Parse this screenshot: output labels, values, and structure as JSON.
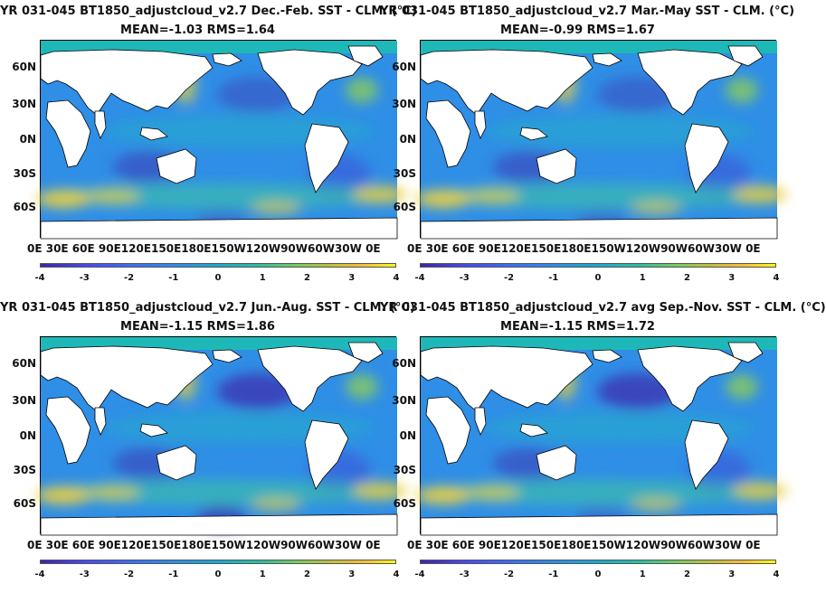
{
  "panels": [
    {
      "title1": "YR 031-045 BT1850_adjustcloud_v2.7  Dec.-Feb. SST - CLM. (°C)",
      "title2": "MEAN=-1.03   RMS=1.64"
    },
    {
      "title1": "YR 031-045 BT1850_adjustcloud_v2.7 Mar.-May SST - CLM. (°C)",
      "title2": "MEAN=-0.99   RMS=1.67"
    },
    {
      "title1": "YR 031-045 BT1850_adjustcloud_v2.7 Jun.-Aug. SST - CLM. (°C)",
      "title2": "MEAN=-1.15   RMS=1.86"
    },
    {
      "title1": "YR 031-045 BT1850_adjustcloud_v2.7 avg Sep.-Nov. SST - CLM. (°C)",
      "title2": "MEAN=-1.15   RMS=1.72"
    }
  ],
  "lat_ticks": [
    "60N",
    "30N",
    "0N",
    "30S",
    "60S"
  ],
  "lon_ticks": "0E  30E 60E 90E120E150E180E150W120W90W60W30W  0E",
  "colorbar_ticks": [
    "-4",
    "-3",
    "-2",
    "-1",
    "0",
    "1",
    "2",
    "3",
    "4"
  ],
  "colors": {
    "ocean_base": "#2f8ee6",
    "land": "#ffffff",
    "ice": "#1fb8b8",
    "warm": "#f0d040",
    "cool": "#3b3fb8"
  }
}
